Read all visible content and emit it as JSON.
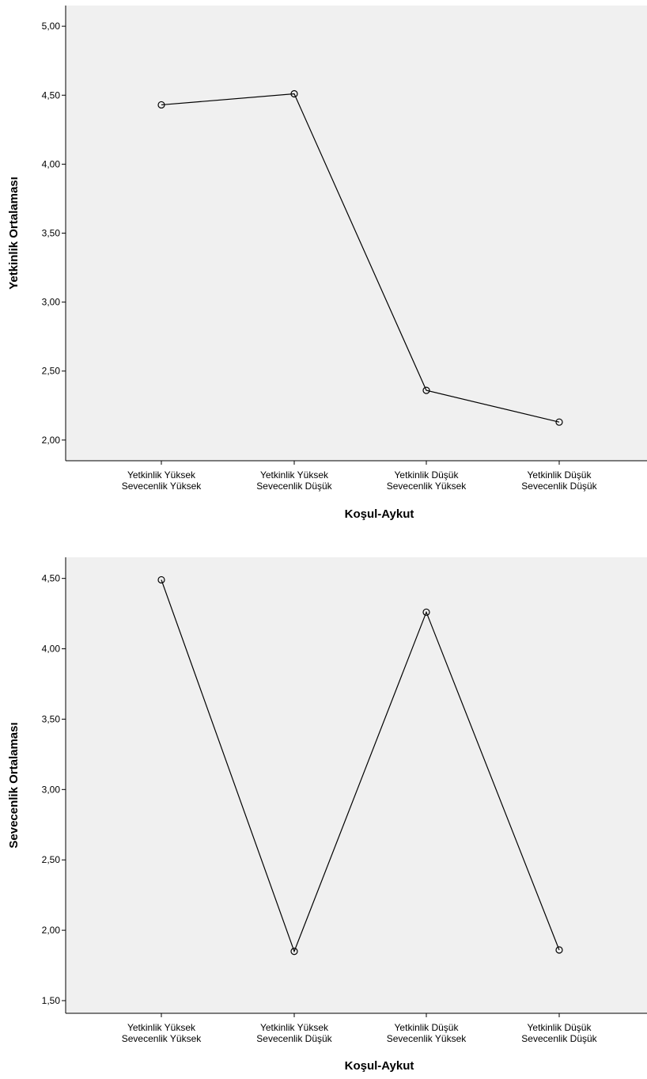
{
  "chart_data": [
    {
      "type": "line",
      "title": "",
      "xlabel": "Koşul-Aykut",
      "ylabel": "Yetkinlik Ortalaması",
      "ylim": [
        1.85,
        5.15
      ],
      "yticks": [
        "5,00",
        "4,50",
        "4,00",
        "3,50",
        "3,00",
        "2,50",
        "2,00"
      ],
      "ytick_values": [
        5.0,
        4.5,
        4.0,
        3.5,
        3.0,
        2.5,
        2.0
      ],
      "categories": [
        [
          "Yetkinlik Yüksek",
          "Sevecenlik Yüksek"
        ],
        [
          "Yetkinlik Yüksek",
          "Sevecenlik Düşük"
        ],
        [
          "Yetkinlik Düşük",
          "Sevecenlik Yüksek"
        ],
        [
          "Yetkinlik Düşük",
          "Sevecenlik Düşük"
        ]
      ],
      "values": [
        4.43,
        4.51,
        2.36,
        2.13
      ],
      "grid": false,
      "marker": "circle",
      "background": "#f0f0f0"
    },
    {
      "type": "line",
      "title": "",
      "xlabel": "Koşul-Aykut",
      "ylabel": "Sevecenlik Ortalaması",
      "ylim": [
        1.41,
        4.65
      ],
      "yticks": [
        "4,50",
        "4,00",
        "3,50",
        "3,00",
        "2,50",
        "2,00",
        "1,50"
      ],
      "ytick_values": [
        4.5,
        4.0,
        3.5,
        3.0,
        2.5,
        2.0,
        1.5
      ],
      "categories": [
        [
          "Yetkinlik Yüksek",
          "Sevecenlik Yüksek"
        ],
        [
          "Yetkinlik Yüksek",
          "Sevecenlik Düşük"
        ],
        [
          "Yetkinlik Düşük",
          "Sevecenlik Yüksek"
        ],
        [
          "Yetkinlik Düşük",
          "Sevecenlik Düşük"
        ]
      ],
      "values": [
        4.49,
        1.85,
        4.26,
        1.86
      ],
      "grid": false,
      "marker": "circle",
      "background": "#f0f0f0"
    }
  ]
}
